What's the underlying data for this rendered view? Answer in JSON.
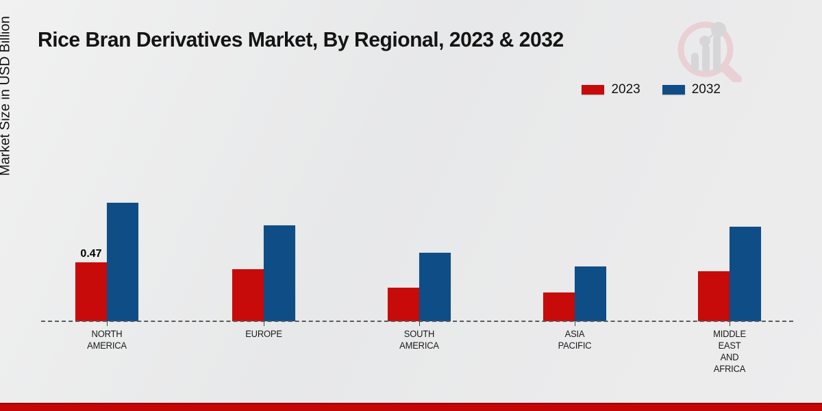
{
  "title": "Rice Bran Derivatives Market, By Regional, 2023 & 2032",
  "ylabel": "Market Size in USD Billion",
  "legend": {
    "items": [
      {
        "label": "2023",
        "color": "#c70b0b"
      },
      {
        "label": "2032",
        "color": "#0f4d87"
      }
    ]
  },
  "chart_data": {
    "type": "bar",
    "title": "Rice Bran Derivatives Market, By Regional, 2023 & 2032",
    "xlabel": "",
    "ylabel": "Market Size in USD Billion",
    "categories": [
      "NORTH AMERICA",
      "EUROPE",
      "SOUTH AMERICA",
      "ASIA PACIFIC",
      "MIDDLE EAST AND AFRICA"
    ],
    "category_lines": [
      [
        "NORTH",
        "AMERICA"
      ],
      [
        "EUROPE"
      ],
      [
        "SOUTH",
        "AMERICA"
      ],
      [
        "ASIA",
        "PACIFIC"
      ],
      [
        "MIDDLE",
        "EAST",
        "AND",
        "AFRICA"
      ]
    ],
    "series": [
      {
        "name": "2023",
        "color": "#c70b0b",
        "values": [
          0.47,
          0.42,
          0.27,
          0.23,
          0.4
        ]
      },
      {
        "name": "2032",
        "color": "#0f4d87",
        "values": [
          0.95,
          0.77,
          0.55,
          0.44,
          0.76
        ]
      }
    ],
    "data_labels": [
      {
        "series_index": 0,
        "category_index": 0,
        "text": "0.47"
      }
    ],
    "ylim": [
      0,
      1.0
    ],
    "grid": false,
    "baseline_style": "dashed",
    "legend_position": "top-right"
  },
  "footer": {
    "accent_color": "#c40606"
  },
  "colors": {
    "background": "#eaeaeb",
    "baseline": "#5a5a5a",
    "title_text": "#141414"
  }
}
